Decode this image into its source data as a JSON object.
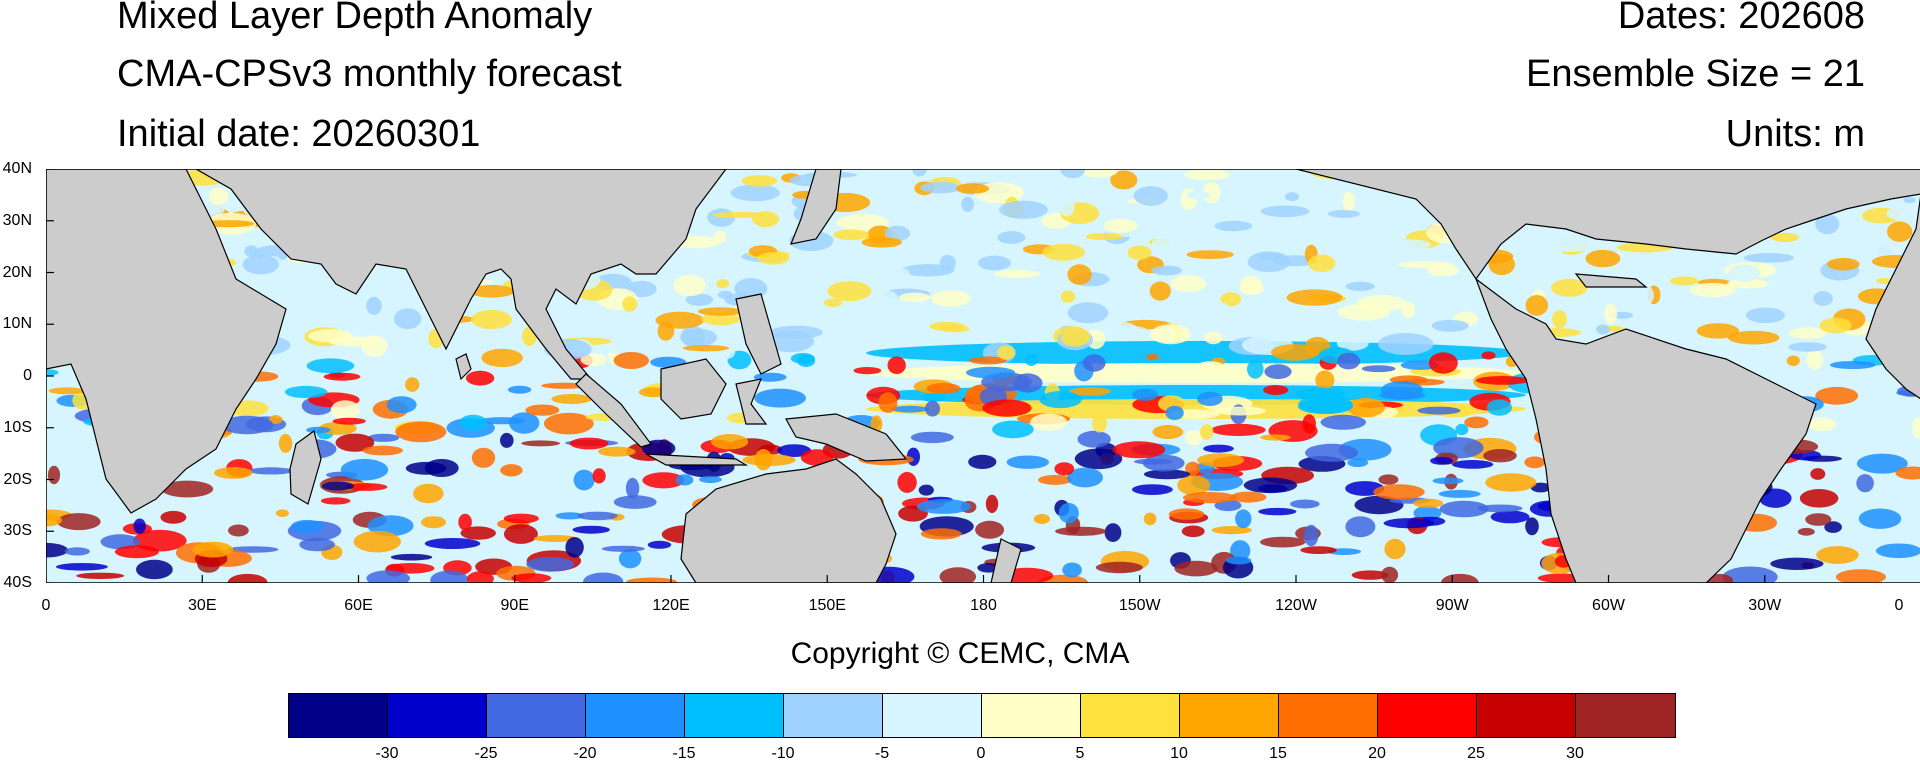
{
  "header": {
    "title": "Mixed Layer Depth Anomaly",
    "subtitle": "CMA-CPSv3 monthly forecast",
    "initial_date": "Initial date: 20260301",
    "dates": "Dates: 202608",
    "ensemble": "Ensemble Size = 21",
    "units": "Units: m"
  },
  "chart_data": {
    "type": "heatmap",
    "variable": "Mixed Layer Depth Anomaly",
    "units": "m",
    "lat_ticks": [
      "40N",
      "30N",
      "20N",
      "10N",
      "0",
      "10S",
      "20S",
      "30S",
      "40S"
    ],
    "lon_ticks": [
      "0",
      "30E",
      "60E",
      "90E",
      "120E",
      "150E",
      "180",
      "150W",
      "120W",
      "90W",
      "60W",
      "30W",
      "0"
    ],
    "lat_range": [
      -40,
      40
    ],
    "lon_range": [
      0,
      360
    ],
    "colorbar": {
      "levels": [
        -30,
        -25,
        -20,
        -15,
        -10,
        -5,
        0,
        5,
        10,
        15,
        20,
        25,
        30
      ],
      "colors": [
        "#00008b",
        "#0000cd",
        "#4169e1",
        "#1e90ff",
        "#00bfff",
        "#a0d2ff",
        "#d6f5ff",
        "#ffffc8",
        "#ffe13c",
        "#ffa500",
        "#ff6e00",
        "#ff0000",
        "#c80000",
        "#a02323"
      ]
    },
    "land_color": "#cccccc"
  },
  "footer": {
    "copyright": "Copyright © CEMC, CMA"
  }
}
